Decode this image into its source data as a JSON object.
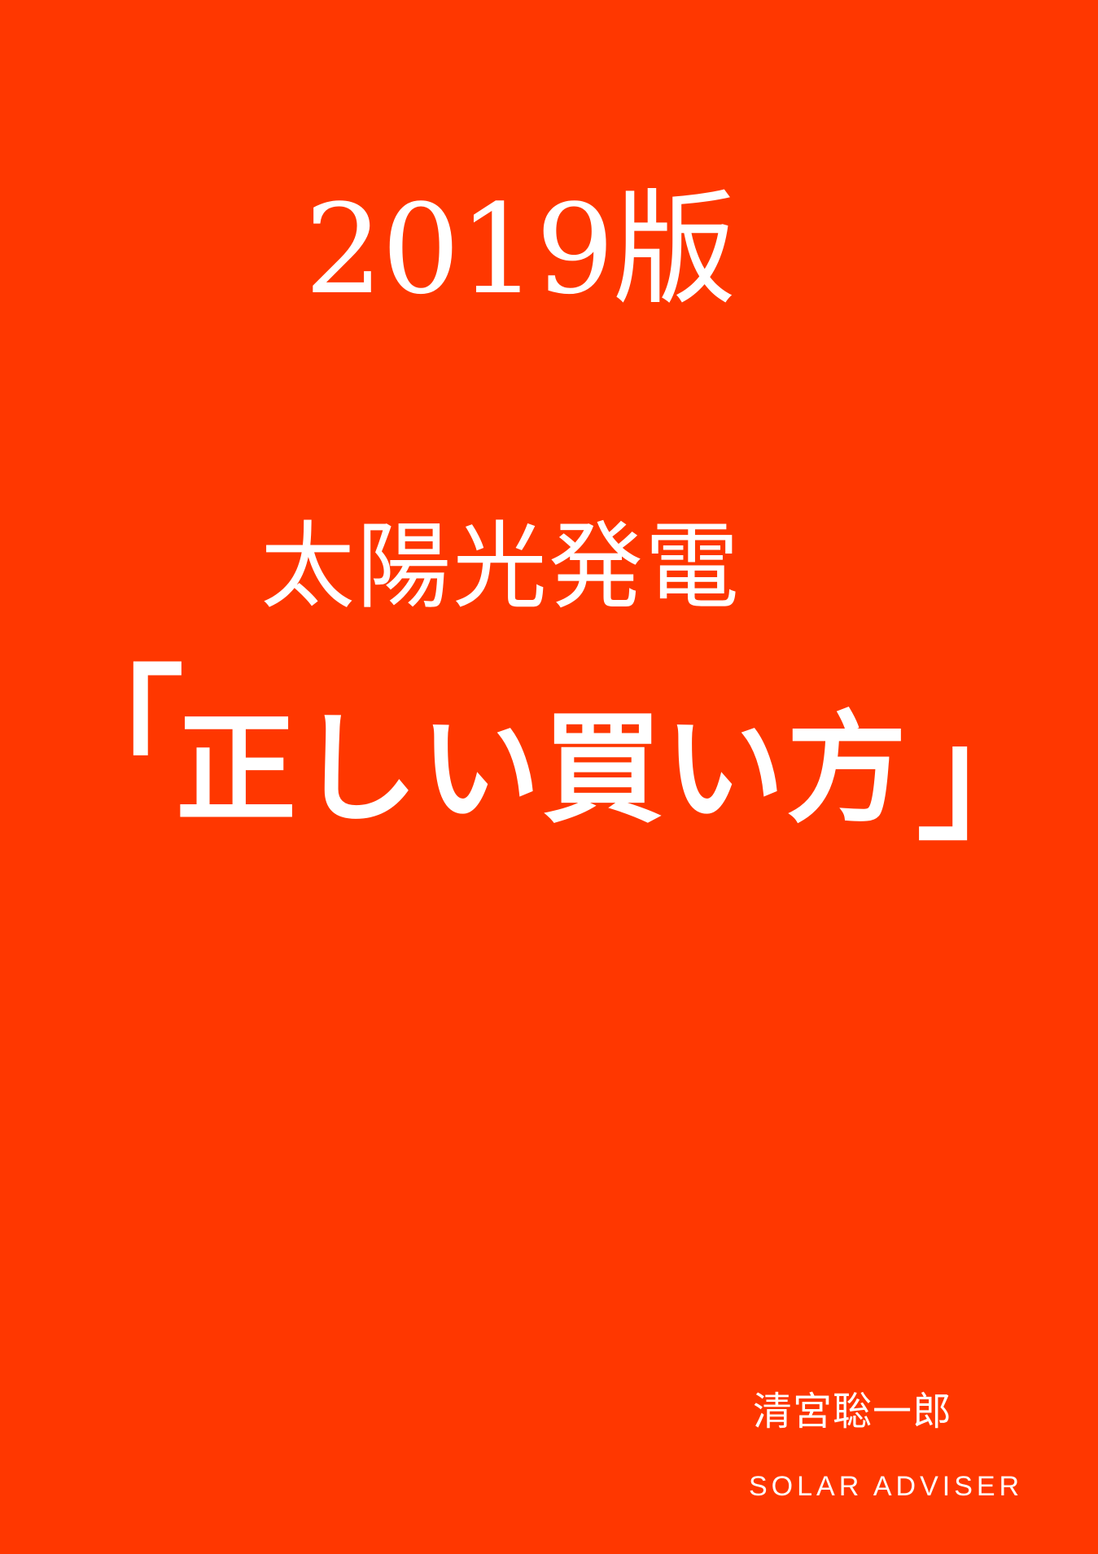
{
  "cover": {
    "edition": "2019版",
    "subject": "太陽光発電",
    "title": {
      "open_bracket": "「",
      "text": "正しい買い方",
      "close_bracket": "」"
    },
    "author": "清宮聡一郎",
    "publisher": "SOLAR ADVISER"
  },
  "colors": {
    "background": "#ff3700",
    "text": "#ffffff"
  }
}
